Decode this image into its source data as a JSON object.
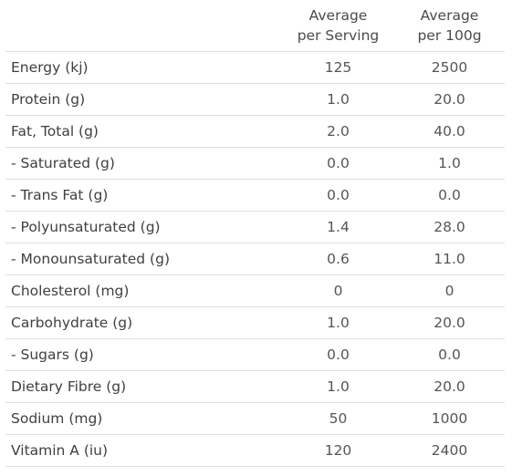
{
  "table": {
    "headers": {
      "serving": [
        "Average",
        "per Serving"
      ],
      "per100g": [
        "Average",
        "per 100g"
      ]
    },
    "rows": [
      {
        "name": "Energy (kj)",
        "serving": "125",
        "per100g": "2500"
      },
      {
        "name": "Protein (g)",
        "serving": "1.0",
        "per100g": "20.0"
      },
      {
        "name": "Fat, Total (g)",
        "serving": "2.0",
        "per100g": "40.0"
      },
      {
        "name": "- Saturated (g)",
        "serving": "0.0",
        "per100g": "1.0"
      },
      {
        "name": "- Trans Fat (g)",
        "serving": "0.0",
        "per100g": "0.0"
      },
      {
        "name": "- Polyunsaturated (g)",
        "serving": "1.4",
        "per100g": "28.0"
      },
      {
        "name": "- Monounsaturated (g)",
        "serving": "0.6",
        "per100g": "11.0"
      },
      {
        "name": "Cholesterol (mg)",
        "serving": "0",
        "per100g": "0"
      },
      {
        "name": "Carbohydrate (g)",
        "serving": "1.0",
        "per100g": "20.0"
      },
      {
        "name": "- Sugars (g)",
        "serving": "0.0",
        "per100g": "0.0"
      },
      {
        "name": "Dietary Fibre (g)",
        "serving": "1.0",
        "per100g": "20.0"
      },
      {
        "name": "Sodium (mg)",
        "serving": "50",
        "per100g": "1000"
      },
      {
        "name": "Vitamin A (iu)",
        "serving": "120",
        "per100g": "2400"
      }
    ]
  }
}
